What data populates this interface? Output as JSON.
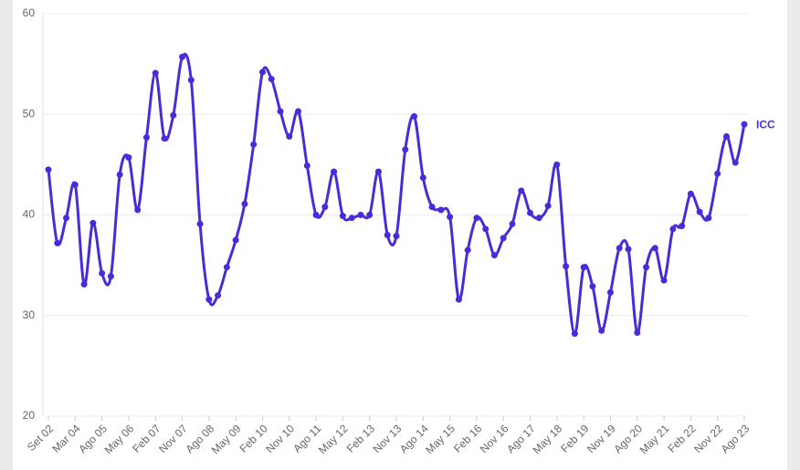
{
  "chart_data": {
    "type": "line",
    "categories": [
      "Set 02",
      null,
      null,
      "Mar 04",
      null,
      null,
      "Ago 05",
      null,
      null,
      "May 06",
      null,
      null,
      "Feb 07",
      null,
      null,
      "Nov 07",
      null,
      null,
      "Ago 08",
      null,
      null,
      "May 09",
      null,
      null,
      "Feb 10",
      null,
      null,
      "Nov 10",
      null,
      null,
      "Ago 11",
      null,
      null,
      "May 12",
      null,
      null,
      "Feb 13",
      null,
      null,
      "Nov 13",
      null,
      null,
      "Ago 14",
      null,
      null,
      "May 15",
      null,
      null,
      "Feb 16",
      null,
      null,
      "Nov 16",
      null,
      null,
      "Ago 17",
      null,
      null,
      "May 18",
      null,
      null,
      "Feb 19",
      null,
      null,
      "Nov 19",
      null,
      null,
      "Ago 20",
      null,
      null,
      "May 21",
      null,
      null,
      "Feb 22",
      null,
      null,
      "Nov 22",
      null,
      null,
      "Ago 23"
    ],
    "series": [
      {
        "name": "ICC",
        "color": "#4b2bd9",
        "values": [
          44.5,
          37.2,
          39.7,
          43.0,
          33.1,
          39.2,
          34.2,
          33.9,
          44.0,
          45.7,
          40.5,
          47.7,
          54.1,
          47.6,
          49.9,
          55.7,
          53.4,
          39.1,
          31.6,
          32.0,
          34.8,
          37.5,
          41.1,
          47.0,
          54.2,
          53.5,
          50.3,
          47.8,
          50.3,
          44.9,
          40.0,
          40.8,
          44.3,
          39.9,
          39.7,
          40.0,
          40.0,
          44.3,
          38.0,
          37.9,
          46.5,
          49.8,
          43.7,
          40.8,
          40.5,
          39.8,
          31.6,
          36.5,
          39.7,
          38.6,
          36.0,
          37.7,
          39.1,
          42.4,
          40.2,
          39.7,
          40.9,
          45.0,
          34.9,
          28.2,
          34.8,
          32.9,
          28.5,
          32.3,
          36.7,
          36.6,
          28.3,
          34.8,
          36.7,
          33.5,
          38.6,
          38.9,
          42.1,
          40.3,
          39.7,
          44.1,
          47.8,
          45.2,
          49.0
        ]
      }
    ],
    "ylim": [
      20,
      60
    ],
    "yticks": [
      20,
      30,
      40,
      50,
      60
    ],
    "grid": true
  }
}
